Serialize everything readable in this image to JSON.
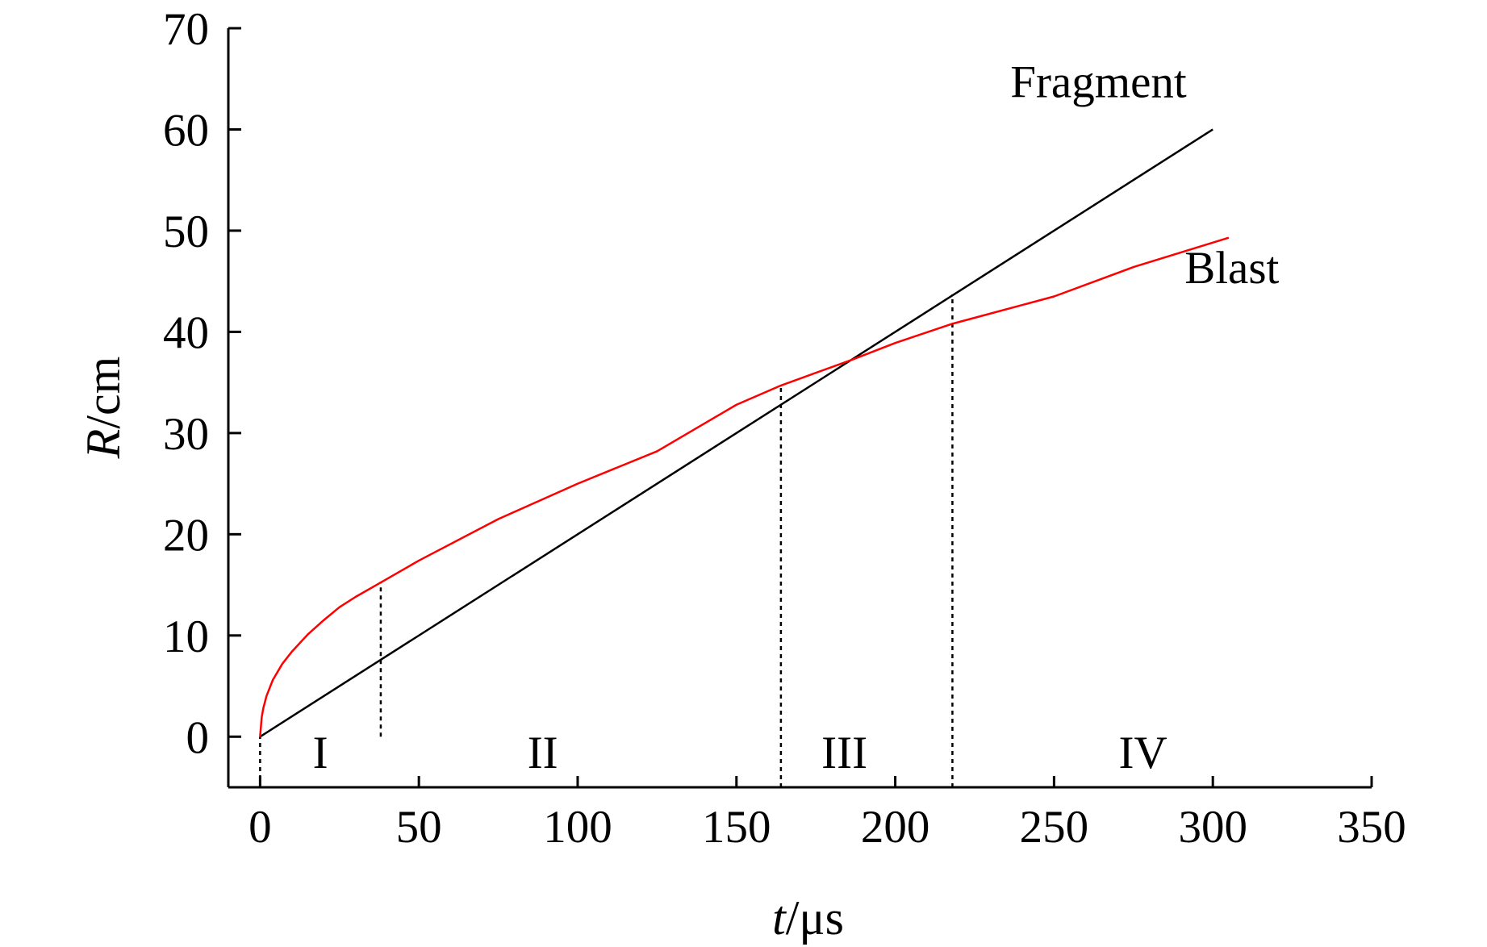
{
  "chart_data": {
    "type": "line",
    "xlabel": {
      "italic": "t",
      "rest": "/μs"
    },
    "ylabel": {
      "italic": "R",
      "rest": "/cm"
    },
    "xlim": [
      -10,
      350
    ],
    "ylim": [
      -5,
      70
    ],
    "xticks": [
      0,
      50,
      100,
      150,
      200,
      250,
      300,
      350
    ],
    "yticks": [
      0,
      10,
      20,
      30,
      40,
      50,
      60,
      70
    ],
    "grid": false,
    "colors": {
      "axis": "#000000",
      "fragment": "#000000",
      "blast": "#ff0000"
    },
    "series": [
      {
        "name": "Fragment",
        "color": "#000000",
        "points": [
          [
            0,
            0
          ],
          [
            300,
            60
          ]
        ]
      },
      {
        "name": "Blast",
        "color": "#ff0000",
        "points": [
          [
            0,
            0
          ],
          [
            0.5,
            1.9
          ],
          [
            1,
            2.8
          ],
          [
            2,
            4.0
          ],
          [
            4,
            5.6
          ],
          [
            7,
            7.2
          ],
          [
            10,
            8.4
          ],
          [
            15,
            10.1
          ],
          [
            20,
            11.5
          ],
          [
            25,
            12.8
          ],
          [
            30,
            13.8
          ],
          [
            37.8,
            15.2
          ],
          [
            50,
            17.4
          ],
          [
            75,
            21.5
          ],
          [
            100,
            25.0
          ],
          [
            125,
            28.2
          ],
          [
            150,
            32.8
          ],
          [
            164,
            34.7
          ],
          [
            186,
            37.2
          ],
          [
            200,
            38.9
          ],
          [
            218,
            40.8
          ],
          [
            250,
            43.5
          ],
          [
            275,
            46.4
          ],
          [
            305,
            49.3
          ]
        ]
      }
    ],
    "dividers": [
      {
        "x": 38,
        "from": 0,
        "to": 15.3
      },
      {
        "x": 164,
        "from": -5,
        "to": 34.7
      },
      {
        "x": 218,
        "from": -5,
        "to": 43.7
      }
    ],
    "origin_divider": {
      "x": 0,
      "from": -5,
      "to": 0
    },
    "regions": [
      {
        "label": "I",
        "x": 19,
        "y": -1.5
      },
      {
        "label": "II",
        "x": 89,
        "y": -1.5
      },
      {
        "label": "III",
        "x": 184,
        "y": -1.5
      },
      {
        "label": "IV",
        "x": 278,
        "y": -1.5
      }
    ],
    "series_labels": [
      {
        "text": "Fragment",
        "x": 264,
        "y": 63.2
      },
      {
        "text": "Blast",
        "x": 306,
        "y": 44.8
      }
    ]
  }
}
